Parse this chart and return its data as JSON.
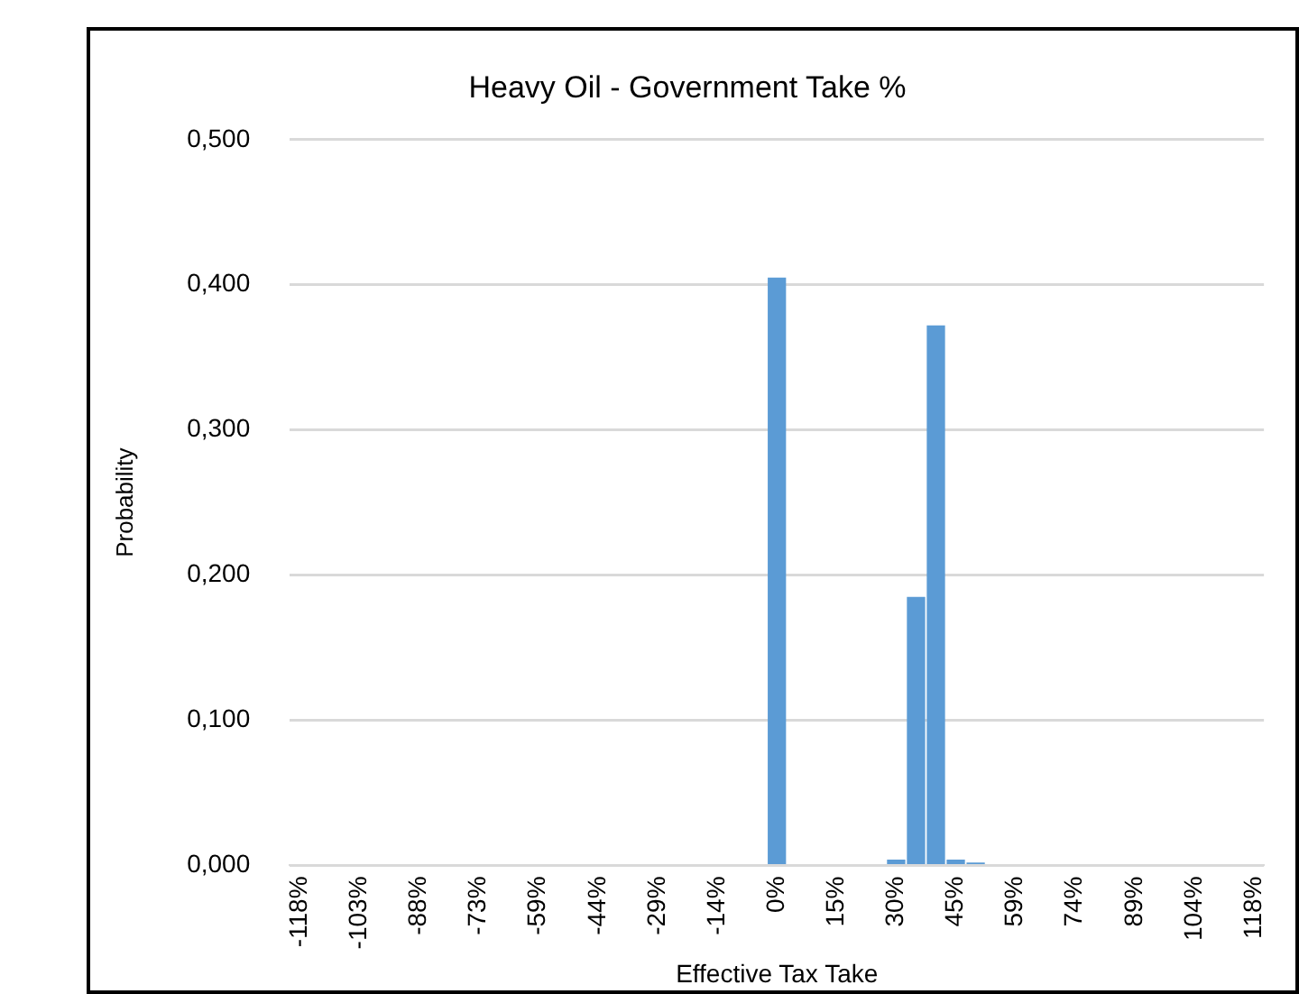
{
  "chart_data": {
    "type": "bar",
    "title": "Heavy Oil - Government Take %",
    "xlabel": "Effective Tax Take",
    "ylabel": "Probability",
    "categories": [
      "-118%",
      null,
      null,
      "-103%",
      null,
      null,
      "-88%",
      null,
      null,
      "-73%",
      null,
      null,
      "-59%",
      null,
      null,
      "-44%",
      null,
      null,
      "-29%",
      null,
      null,
      "-14%",
      null,
      null,
      "0%",
      null,
      null,
      "15%",
      null,
      null,
      "30%",
      null,
      null,
      "45%",
      null,
      null,
      "59%",
      null,
      null,
      "74%",
      null,
      null,
      "89%",
      null,
      null,
      "104%",
      null,
      null,
      "118%"
    ],
    "values": [
      0,
      0,
      0,
      0,
      0,
      0,
      0,
      0,
      0,
      0,
      0,
      0,
      0,
      0,
      0,
      0,
      0,
      0,
      0,
      0,
      0,
      0,
      0,
      0,
      0.405,
      0,
      0,
      0,
      0,
      0,
      0.004,
      0.185,
      0.372,
      0.004,
      0.002,
      0,
      0,
      0,
      0,
      0,
      0,
      0,
      0,
      0,
      0,
      0,
      0,
      0,
      0
    ],
    "color": "#5b9bd5",
    "ylim": [
      0,
      0.5
    ],
    "yticks": [
      {
        "value": 0,
        "label": "0,000"
      },
      {
        "value": 0.1,
        "label": "0,100"
      },
      {
        "value": 0.2,
        "label": "0,200"
      },
      {
        "value": 0.3,
        "label": "0,300"
      },
      {
        "value": 0.4,
        "label": "0,400"
      },
      {
        "value": 0.5,
        "label": "0,500"
      }
    ],
    "grid": "y",
    "legend": false
  }
}
